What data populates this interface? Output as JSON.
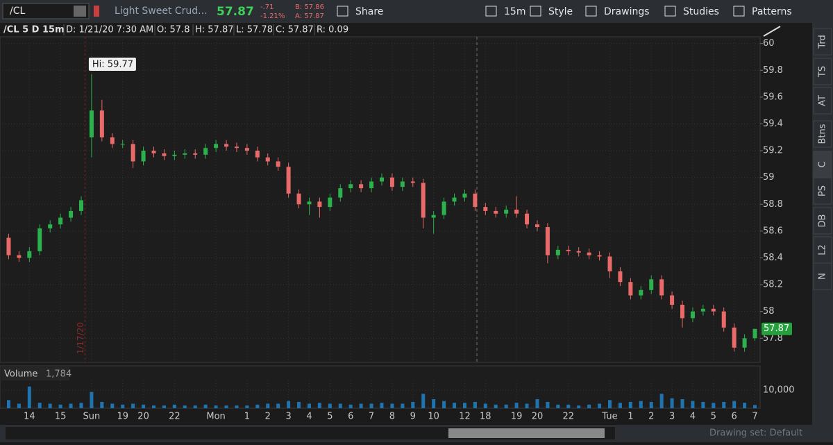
{
  "toolbar": {
    "symbol": "/CL",
    "description": "Light Sweet Crud...",
    "last": "57.87",
    "change": "-.71",
    "change_pct": "-1.21%",
    "bid": "B: 57.86",
    "ask": "A: 57.87",
    "buttons": [
      "Share",
      "15m",
      "Style",
      "Drawings",
      "Studies",
      "Patterns"
    ]
  },
  "info_bar": [
    "/CL 5 D 15m",
    "D: 1/21/20 7:30 AM",
    "O: 57.8",
    "H: 57.87",
    "L: 57.78",
    "C: 57.87",
    "R: 0.09"
  ],
  "chart_data": {
    "type": "candlestick",
    "categories": [
      null,
      null,
      "14",
      null,
      null,
      "15",
      null,
      null,
      "Sun",
      null,
      null,
      "19",
      null,
      "20",
      null,
      null,
      "22",
      null,
      null,
      null,
      "Mon",
      null,
      null,
      "1",
      null,
      "2",
      null,
      "3",
      null,
      "4",
      null,
      "5",
      null,
      "6",
      null,
      "7",
      null,
      "8",
      null,
      "9",
      null,
      "10",
      null,
      null,
      "12",
      null,
      "18",
      null,
      null,
      "19",
      null,
      "20",
      null,
      null,
      "22",
      null,
      null,
      null,
      "Tue",
      null,
      "1",
      null,
      "2",
      null,
      "3",
      null,
      "4",
      null,
      "5",
      null,
      "6",
      null,
      "7"
    ],
    "open": [
      58.55,
      58.42,
      58.4,
      58.45,
      58.62,
      58.65,
      58.7,
      58.75,
      59.3,
      59.5,
      59.3,
      59.25,
      59.25,
      59.12,
      59.2,
      59.18,
      59.16,
      59.17,
      59.18,
      59.17,
      59.22,
      59.25,
      59.23,
      59.22,
      59.2,
      59.15,
      59.12,
      59.08,
      58.88,
      58.8,
      58.82,
      58.78,
      58.85,
      58.92,
      58.95,
      58.92,
      58.97,
      59.0,
      58.93,
      58.97,
      58.96,
      58.7,
      58.72,
      58.82,
      58.85,
      58.88,
      58.78,
      58.75,
      58.73,
      58.76,
      58.73,
      58.65,
      58.63,
      58.42,
      58.46,
      58.45,
      58.44,
      58.42,
      58.41,
      58.3,
      58.22,
      58.12,
      58.16,
      58.24,
      58.12,
      58.05,
      57.95,
      58.0,
      58.02,
      58.0,
      57.88,
      57.73,
      57.8
    ],
    "high": [
      58.58,
      58.45,
      58.48,
      58.65,
      58.68,
      58.73,
      58.78,
      58.86,
      59.77,
      59.58,
      59.33,
      59.28,
      59.28,
      59.23,
      59.23,
      59.21,
      59.2,
      59.21,
      59.21,
      59.25,
      59.28,
      59.28,
      59.26,
      59.25,
      59.23,
      59.18,
      59.15,
      59.11,
      58.91,
      58.85,
      58.85,
      58.88,
      58.95,
      58.98,
      58.98,
      59.0,
      59.03,
      59.03,
      59.0,
      59.0,
      58.99,
      58.75,
      58.85,
      58.88,
      58.91,
      58.91,
      58.81,
      58.78,
      58.79,
      58.86,
      58.76,
      58.68,
      58.66,
      58.49,
      58.49,
      58.48,
      58.47,
      58.45,
      58.44,
      58.33,
      58.25,
      58.19,
      58.27,
      58.27,
      58.15,
      58.08,
      58.03,
      58.05,
      58.05,
      58.03,
      57.91,
      57.83,
      57.87
    ],
    "low": [
      58.39,
      58.37,
      58.37,
      58.42,
      58.59,
      58.62,
      58.67,
      58.72,
      59.15,
      59.27,
      59.22,
      59.22,
      59.07,
      59.09,
      59.15,
      59.13,
      59.13,
      59.14,
      59.14,
      59.14,
      59.19,
      59.2,
      59.19,
      59.17,
      59.12,
      59.09,
      59.05,
      58.85,
      58.77,
      58.72,
      58.7,
      58.75,
      58.82,
      58.89,
      58.89,
      58.89,
      58.94,
      58.9,
      58.9,
      58.93,
      58.62,
      58.58,
      58.69,
      58.79,
      58.82,
      58.75,
      58.72,
      58.7,
      58.7,
      58.7,
      58.62,
      58.6,
      58.36,
      58.39,
      58.42,
      58.41,
      58.39,
      58.38,
      58.25,
      58.19,
      58.09,
      58.09,
      58.13,
      58.09,
      58.02,
      57.88,
      57.92,
      57.97,
      57.97,
      57.85,
      57.7,
      57.7,
      57.78
    ],
    "close": [
      58.42,
      58.4,
      58.45,
      58.62,
      58.65,
      58.7,
      58.75,
      58.83,
      59.5,
      59.3,
      59.25,
      59.25,
      59.12,
      59.2,
      59.18,
      59.16,
      59.17,
      59.18,
      59.17,
      59.22,
      59.25,
      59.23,
      59.22,
      59.2,
      59.15,
      59.12,
      59.08,
      58.88,
      58.8,
      58.82,
      58.78,
      58.85,
      58.92,
      58.95,
      58.92,
      58.97,
      59.0,
      58.93,
      58.97,
      58.96,
      58.7,
      58.72,
      58.82,
      58.85,
      58.88,
      58.78,
      58.75,
      58.73,
      58.76,
      58.73,
      58.65,
      58.63,
      58.42,
      58.46,
      58.45,
      58.44,
      58.42,
      58.41,
      58.3,
      58.22,
      58.12,
      58.16,
      58.24,
      58.12,
      58.05,
      57.95,
      58.0,
      58.02,
      58.0,
      57.88,
      57.73,
      57.8,
      57.87
    ],
    "ylim": [
      57.62,
      60.05
    ],
    "yticks": [
      57.8,
      58,
      58.2,
      58.4,
      58.6,
      58.8,
      59,
      59.2,
      59.4,
      59.6,
      59.8,
      60
    ],
    "grid": true,
    "up_color": "#2bb24c",
    "down_color": "#ea6a6a",
    "annotation": "Hi: 59.77",
    "session_marker": "1/17/20",
    "last_price": 57.87,
    "volume": {
      "title": "Volume",
      "latest_label": "1,784",
      "color": "#1f74b0",
      "values": [
        4500,
        2500,
        12000,
        3000,
        2500,
        2000,
        2500,
        3000,
        9000,
        3500,
        2500,
        2000,
        2500,
        2000,
        1500,
        1500,
        2000,
        1500,
        1500,
        2000,
        1500,
        1500,
        1500,
        1500,
        2000,
        2500,
        2500,
        4000,
        3500,
        2500,
        3000,
        2500,
        2500,
        2000,
        2500,
        2500,
        3000,
        2500,
        2500,
        3500,
        8000,
        5000,
        4000,
        3000,
        3000,
        3500,
        2500,
        2000,
        2000,
        3000,
        2500,
        5000,
        3500,
        2000,
        2000,
        1500,
        2000,
        2500,
        4500,
        3000,
        3500,
        4000,
        3500,
        8000,
        5500,
        5000,
        4000,
        3500,
        3000,
        3500,
        4000,
        3000,
        1784
      ],
      "ylim": [
        0,
        15400
      ],
      "yticks": [
        {
          "value": 10000,
          "label": "10,000"
        }
      ]
    }
  },
  "side_tabs": [
    "Trd",
    "TS",
    "AT",
    "Btns",
    "C",
    "PS",
    "DB",
    "L2",
    "N"
  ],
  "status": "Drawing set: Default"
}
